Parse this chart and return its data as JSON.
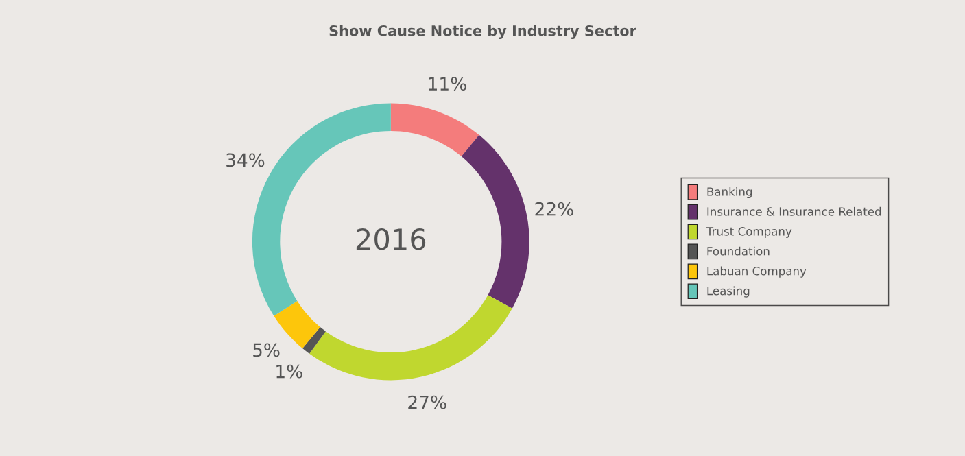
{
  "chart_data": {
    "type": "donut",
    "title": "Show Cause Notice by Industry Sector",
    "categories": [
      "Banking",
      "Insurance & Insurance Related",
      "Trust Company",
      "Foundation",
      "Labuan Company",
      "Leasing"
    ],
    "values": [
      11,
      22,
      27,
      1,
      5,
      34
    ],
    "colors": [
      "#f47c7c",
      "#64326b",
      "#c0d72f",
      "#555555",
      "#fdc60b",
      "#66c6b9"
    ],
    "value_labels": [
      "11%",
      "22%",
      "27%",
      "1%",
      "5%",
      "34%"
    ],
    "annotations": [
      "2016"
    ],
    "legend": "right"
  }
}
